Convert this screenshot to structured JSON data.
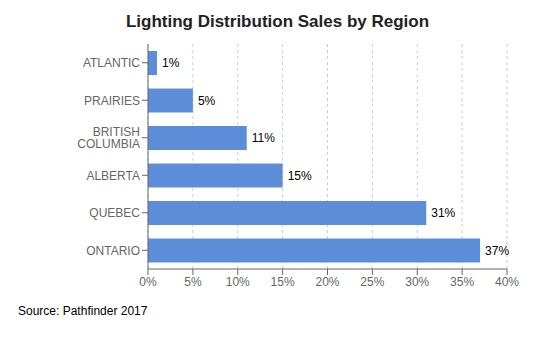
{
  "chart_data": {
    "type": "bar",
    "orientation": "horizontal",
    "title": "Lighting Distribution Sales by Region",
    "categories": [
      "ONTARIO",
      "QUEBEC",
      "ALBERTA",
      "BRITISH COLUMBIA",
      "PRAIRIES",
      "ATLANTIC"
    ],
    "values": [
      37,
      31,
      15,
      11,
      5,
      1
    ],
    "value_labels": [
      "37%",
      "31%",
      "15%",
      "11%",
      "5%",
      "1%"
    ],
    "data_labels": true,
    "color": "#5b8dd9",
    "xlim": [
      0,
      40
    ],
    "xticks": [
      {
        "value": 0,
        "label": "0%"
      },
      {
        "value": 5,
        "label": "5%"
      },
      {
        "value": 10,
        "label": "10%"
      },
      {
        "value": 15,
        "label": "15%"
      },
      {
        "value": 20,
        "label": "20%"
      },
      {
        "value": 25,
        "label": "25%"
      },
      {
        "value": 30,
        "label": "30%"
      },
      {
        "value": 35,
        "label": "35%"
      },
      {
        "value": 40,
        "label": "40%"
      }
    ],
    "grid": true,
    "annotations": [
      "Source: Pathfinder 2017"
    ]
  }
}
